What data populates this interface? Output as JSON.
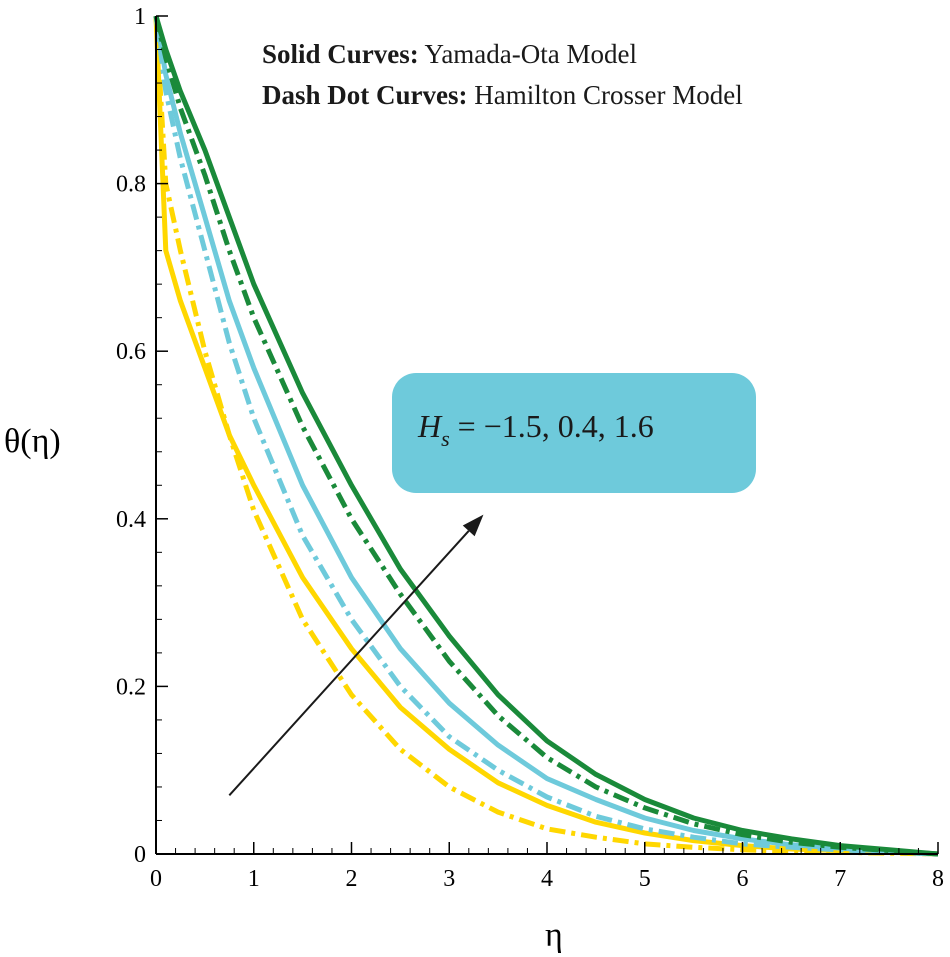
{
  "chart_data": {
    "type": "line",
    "xlabel": "η",
    "ylabel": "θ(η)",
    "xlim": [
      0,
      8
    ],
    "ylim": [
      0,
      1
    ],
    "xticks": [
      "0",
      "1",
      "2",
      "3",
      "4",
      "5",
      "6",
      "7",
      "8"
    ],
    "yticks": [
      "0",
      "0.2",
      "0.4",
      "0.6",
      "0.8",
      "1"
    ],
    "grid": false,
    "annotations": {
      "legend_line1_bold": "Solid Curves:",
      "legend_line1_text": " Yamada-Ota Model",
      "legend_line2_bold": "Dash Dot Curves:",
      "legend_line2_text": " Hamilton Crosser Model",
      "box_symbol": "H",
      "box_subscript": "s",
      "box_text": " = −1.5, 0.4, 1.6",
      "box_color": "#6ecadb",
      "arrow_from": [
        0.75,
        0.07
      ],
      "arrow_to": [
        3.35,
        0.405
      ]
    },
    "series": [
      {
        "model": "Yamada-Ota",
        "style": "solid",
        "color": "#ffd700",
        "x": [
          0,
          0.1,
          0.25,
          0.5,
          0.75,
          1,
          1.5,
          2,
          2.5,
          3,
          3.5,
          4,
          4.5,
          5,
          5.5,
          6,
          6.5,
          7,
          7.5,
          8
        ],
        "y": [
          1,
          0.72,
          0.66,
          0.58,
          0.5,
          0.44,
          0.33,
          0.245,
          0.175,
          0.125,
          0.085,
          0.058,
          0.038,
          0.025,
          0.016,
          0.01,
          0.006,
          0.004,
          0.002,
          0
        ]
      },
      {
        "model": "Hamilton Crosser",
        "style": "dashdot",
        "color": "#ffd700",
        "x": [
          0,
          0.1,
          0.25,
          0.5,
          0.75,
          1,
          1.5,
          2,
          2.5,
          3,
          3.5,
          4,
          4.5,
          5,
          5.5,
          6,
          6.5,
          7,
          7.5,
          8
        ],
        "y": [
          1,
          0.8,
          0.72,
          0.6,
          0.5,
          0.41,
          0.28,
          0.19,
          0.125,
          0.08,
          0.05,
          0.03,
          0.02,
          0.012,
          0.008,
          0.005,
          0.003,
          0.002,
          0.001,
          0
        ]
      },
      {
        "model": "Yamada-Ota",
        "style": "solid",
        "color": "#6ecadb",
        "x": [
          0,
          0.1,
          0.25,
          0.5,
          0.75,
          1,
          1.5,
          2,
          2.5,
          3,
          3.5,
          4,
          4.5,
          5,
          5.5,
          6,
          6.5,
          7,
          7.5,
          8
        ],
        "y": [
          1,
          0.93,
          0.86,
          0.76,
          0.66,
          0.58,
          0.44,
          0.33,
          0.245,
          0.18,
          0.13,
          0.09,
          0.065,
          0.043,
          0.028,
          0.018,
          0.011,
          0.007,
          0.003,
          0
        ]
      },
      {
        "model": "Hamilton Crosser",
        "style": "dashdot",
        "color": "#6ecadb",
        "x": [
          0,
          0.1,
          0.25,
          0.5,
          0.75,
          1,
          1.5,
          2,
          2.5,
          3,
          3.5,
          4,
          4.5,
          5,
          5.5,
          6,
          6.5,
          7,
          7.5,
          8
        ],
        "y": [
          1,
          0.91,
          0.83,
          0.72,
          0.61,
          0.52,
          0.38,
          0.28,
          0.2,
          0.14,
          0.1,
          0.068,
          0.045,
          0.03,
          0.02,
          0.012,
          0.008,
          0.005,
          0.002,
          0
        ]
      },
      {
        "model": "Yamada-Ota",
        "style": "solid",
        "color": "#1a8a3a",
        "x": [
          0,
          0.1,
          0.25,
          0.5,
          0.75,
          1,
          1.5,
          2,
          2.5,
          3,
          3.5,
          4,
          4.5,
          5,
          5.5,
          6,
          6.5,
          7,
          7.5,
          8
        ],
        "y": [
          1,
          0.96,
          0.91,
          0.84,
          0.76,
          0.68,
          0.55,
          0.44,
          0.34,
          0.26,
          0.19,
          0.135,
          0.095,
          0.065,
          0.043,
          0.028,
          0.018,
          0.01,
          0.005,
          0
        ]
      },
      {
        "model": "Hamilton Crosser",
        "style": "dashdot",
        "color": "#1a8a3a",
        "x": [
          0,
          0.1,
          0.25,
          0.5,
          0.75,
          1,
          1.5,
          2,
          2.5,
          3,
          3.5,
          4,
          4.5,
          5,
          5.5,
          6,
          6.5,
          7,
          7.5,
          8
        ],
        "y": [
          1,
          0.95,
          0.89,
          0.81,
          0.72,
          0.64,
          0.51,
          0.4,
          0.31,
          0.23,
          0.165,
          0.115,
          0.08,
          0.055,
          0.036,
          0.023,
          0.014,
          0.008,
          0.004,
          0
        ]
      }
    ]
  }
}
